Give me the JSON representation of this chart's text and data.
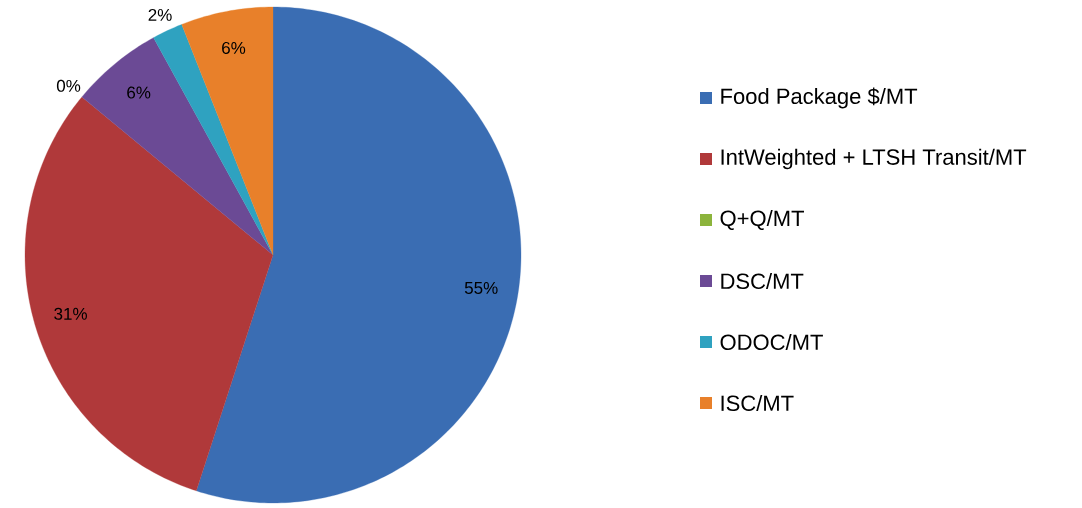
{
  "chart_data": {
    "type": "pie",
    "categories": [
      "Food Package $/MT",
      "IntWeighted + LTSH Transit/MT",
      "Q+Q/MT",
      "DSC/MT",
      "ODOC/MT",
      "ISC/MT"
    ],
    "values": [
      55,
      31,
      0,
      6,
      2,
      6
    ],
    "colors": [
      "#3a6db3",
      "#b0393a",
      "#8cb43c",
      "#6b4a95",
      "#2fa2c0",
      "#e8802a"
    ],
    "value_labels": [
      "55%",
      "31%",
      "0%",
      "6%",
      "2%",
      "6%"
    ],
    "legend": "right"
  }
}
